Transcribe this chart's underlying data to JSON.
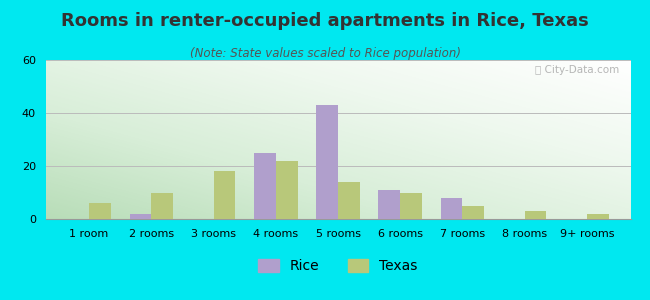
{
  "title": "Rooms in renter-occupied apartments in Rice, Texas",
  "subtitle": "(Note: State values scaled to Rice population)",
  "categories": [
    "1 room",
    "2 rooms",
    "3 rooms",
    "4 rooms",
    "5 rooms",
    "6 rooms",
    "7 rooms",
    "8 rooms",
    "9+ rooms"
  ],
  "rice_values": [
    0,
    2,
    0,
    25,
    43,
    11,
    8,
    0,
    0
  ],
  "texas_values": [
    6,
    10,
    18,
    22,
    14,
    10,
    5,
    3,
    2
  ],
  "rice_color": "#b09fcc",
  "texas_color": "#b8c87a",
  "background_outer": "#00e8f0",
  "ylim": [
    0,
    60
  ],
  "yticks": [
    0,
    20,
    40,
    60
  ],
  "bar_width": 0.35,
  "legend_rice": "Rice",
  "legend_texas": "Texas",
  "title_fontsize": 13,
  "subtitle_fontsize": 8.5,
  "tick_fontsize": 8,
  "legend_fontsize": 10,
  "grad_color_left": "#c8e8c8",
  "grad_color_right": "#f0fff8",
  "watermark": "City-Data.com"
}
